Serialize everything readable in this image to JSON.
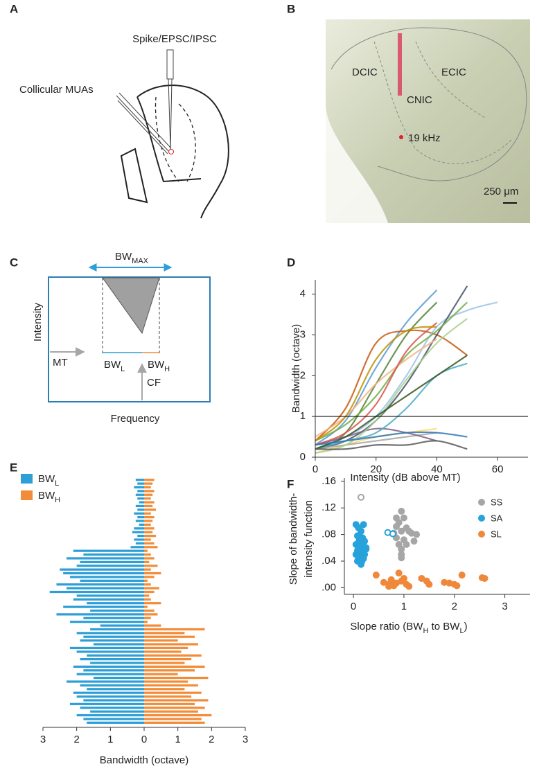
{
  "panel_a": {
    "letter": "A",
    "electrode_label": "Spike/EPSC/IPSC",
    "mua_label": "Collicular MUAs"
  },
  "panel_b": {
    "letter": "B",
    "dcic": "DCIC",
    "ecic": "ECIC",
    "cnic": "CNIC",
    "site": "19 kHz",
    "scale": "250 μm"
  },
  "panel_c": {
    "letter": "C",
    "bw_max": [
      {
        "t": "BW"
      },
      {
        "sub": "MAX"
      }
    ],
    "y_label": "Intensity",
    "x_label": "Frequency",
    "mt": "MT",
    "bw_l": [
      {
        "t": "BW"
      },
      {
        "sub": "L"
      }
    ],
    "bw_h": [
      {
        "t": "BW"
      },
      {
        "sub": "H"
      }
    ],
    "cf": "CF"
  },
  "chart_data": [
    {
      "type": "line",
      "panel": "D",
      "y_label": "Bandwidth (octave)",
      "x_label": "Intensity  (dB above MT)",
      "x": [
        0,
        10,
        20,
        30,
        40,
        50,
        60
      ],
      "xlim": [
        0,
        70
      ],
      "ylim": [
        0,
        4.35
      ],
      "xticks": [
        0,
        20,
        40,
        60
      ],
      "yticks": [
        0,
        1,
        2,
        3,
        4
      ],
      "reference_line": 1,
      "series": [
        {
          "color": "#5b9bd5",
          "values": [
            0.3,
            0.9,
            2.2,
            3.3,
            4.1,
            null,
            null
          ]
        },
        {
          "color": "#548235",
          "values": [
            0.2,
            0.6,
            1.8,
            3.0,
            3.8,
            null,
            null
          ]
        },
        {
          "color": "#c55a11",
          "values": [
            0.4,
            1.2,
            2.8,
            3.1,
            3.0,
            2.5,
            null
          ]
        },
        {
          "color": "#9dc3e6",
          "values": [
            0.3,
            0.5,
            1.0,
            2.0,
            3.2,
            3.6,
            3.8
          ]
        },
        {
          "color": "#44546a",
          "values": [
            0.2,
            0.4,
            0.9,
            1.8,
            3.0,
            4.2,
            null
          ]
        },
        {
          "color": "#ffd966",
          "values": [
            0.1,
            0.3,
            0.5,
            0.6,
            0.7,
            null,
            null
          ]
        },
        {
          "color": "#a5a5a5",
          "values": [
            0.2,
            0.3,
            0.4,
            0.5,
            0.6,
            null,
            null
          ]
        },
        {
          "color": "#7f6084",
          "values": [
            0.3,
            0.5,
            0.7,
            0.6,
            0.4,
            null,
            null
          ]
        },
        {
          "color": "#70ad47",
          "values": [
            0.4,
            0.8,
            1.5,
            2.5,
            3.1,
            3.8,
            null
          ]
        },
        {
          "color": "#f4b183",
          "values": [
            0.5,
            1.0,
            1.8,
            2.4,
            2.9,
            null,
            null
          ]
        },
        {
          "color": "#4bacc6",
          "values": [
            0.2,
            0.4,
            0.6,
            1.2,
            2.0,
            2.3,
            null
          ]
        },
        {
          "color": "#d9544f",
          "values": [
            0.3,
            0.6,
            1.3,
            2.6,
            3.3,
            null,
            null
          ]
        },
        {
          "color": "#a9d18e",
          "values": [
            0.1,
            0.3,
            0.9,
            1.9,
            2.8,
            3.4,
            null
          ]
        },
        {
          "color": "#375623",
          "values": [
            0.2,
            0.5,
            1.0,
            1.5,
            2.0,
            2.5,
            null
          ]
        },
        {
          "color": "#2e75b6",
          "values": [
            0.3,
            0.4,
            0.5,
            0.6,
            0.6,
            0.5,
            null
          ]
        },
        {
          "color": "#595959",
          "values": [
            0.2,
            0.2,
            0.3,
            0.3,
            0.4,
            0.2,
            null
          ]
        },
        {
          "color": "#bf9000",
          "values": [
            0.4,
            1.0,
            2.4,
            3.1,
            3.2,
            null,
            null
          ]
        }
      ]
    },
    {
      "type": "butterfly_bar",
      "panel": "E",
      "x_label": "Bandwidth (octave)",
      "xlim": [
        0,
        3
      ],
      "xticks_left": [
        3,
        2,
        1
      ],
      "xticks": [
        0,
        1,
        2,
        3
      ],
      "series": [
        {
          "name": [
            {
              "t": "BW"
            },
            {
              "sub": "L"
            }
          ],
          "color": "#2e9fd6",
          "values": [
            0.25,
            0.2,
            0.3,
            0.2,
            0.25,
            0.2,
            0.15,
            0.25,
            0.2,
            0.3,
            0.2,
            0.25,
            0.15,
            0.3,
            0.35,
            0.2,
            0.3,
            0.25,
            0.4,
            2.1,
            1.8,
            2.3,
            1.9,
            2.0,
            2.5,
            2.4,
            2.2,
            1.9,
            2.6,
            2.3,
            2.8,
            2.0,
            2.1,
            1.7,
            2.4,
            1.6,
            2.6,
            1.8,
            2.2,
            1.3,
            1.6,
            2.0,
            1.8,
            1.9,
            1.5,
            2.2,
            2.0,
            1.7,
            1.9,
            1.6,
            2.1,
            1.8,
            2.0,
            1.5,
            2.3,
            1.9,
            1.7,
            2.1,
            2.0,
            1.8,
            2.2,
            1.9,
            1.6,
            2.0,
            1.8,
            1.7
          ]
        },
        {
          "name": [
            {
              "t": "BW"
            },
            {
              "sub": "H"
            }
          ],
          "color": "#f28c38",
          "values": [
            0.3,
            0.25,
            0.2,
            0.3,
            0.25,
            0.2,
            0.3,
            0.25,
            0.35,
            0.2,
            0.3,
            0.25,
            0.2,
            0.3,
            0.25,
            0.35,
            0.2,
            0.3,
            0.4,
            0.1,
            0.2,
            0.3,
            0.15,
            0.4,
            0.2,
            0.5,
            0.3,
            0.1,
            0.2,
            0.45,
            0.3,
            0.15,
            0.2,
            0.5,
            0.1,
            0.3,
            0.4,
            0.2,
            0.1,
            0.5,
            1.8,
            1.2,
            1.5,
            1.0,
            1.6,
            1.3,
            1.1,
            1.7,
            1.4,
            1.2,
            1.8,
            1.5,
            1.0,
            1.9,
            1.3,
            1.6,
            1.2,
            1.7,
            1.4,
            1.9,
            1.5,
            1.8,
            1.6,
            2.0,
            1.7,
            1.8
          ]
        }
      ]
    },
    {
      "type": "scatter",
      "panel": "F",
      "y_label": [
        "Slope of bandwidth-",
        "intensity function"
      ],
      "x_label": [
        {
          "t": "Slope ratio (BW"
        },
        {
          "sub": "H"
        },
        {
          "t": " to BW"
        },
        {
          "sub": "L"
        },
        {
          "t": ")"
        }
      ],
      "xlim": [
        -0.18,
        3.5
      ],
      "ylim": [
        -0.01,
        0.165
      ],
      "xticks": [
        0,
        1,
        2,
        3
      ],
      "yticks": [
        {
          "value": 0,
          "label": ".00"
        },
        {
          "value": 0.04,
          "label": ".04"
        },
        {
          "value": 0.08,
          "label": ".08"
        },
        {
          "value": 0.12,
          "label": ".12"
        },
        {
          "value": 0.16,
          "label": ".16"
        }
      ],
      "series": [
        {
          "name": "SS",
          "color": "#a6a6a6",
          "x": [
            0.95,
            0.85,
            1.0,
            0.9,
            0.85,
            1.05,
            0.95,
            0.8,
            1.25,
            1.15,
            1.1,
            0.85,
            1.0,
            1.2,
            0.9,
            1.05,
            0.95,
            0.95,
            0.95
          ],
          "values": [
            0.115,
            0.105,
            0.105,
            0.098,
            0.092,
            0.09,
            0.085,
            0.082,
            0.08,
            0.082,
            0.085,
            0.075,
            0.072,
            0.07,
            0.065,
            0.065,
            0.058,
            0.05,
            0.045
          ],
          "open_x": [
            0.15
          ],
          "open_values": [
            0.136
          ]
        },
        {
          "name": "SA",
          "color": "#27a2db",
          "x": [
            0.05,
            0.1,
            0.15,
            0.2,
            0.08,
            0.12,
            0.18,
            0.22,
            0.1,
            0.05,
            0.15,
            0.2,
            0.1,
            0.25,
            0.08,
            0.12,
            0.18,
            0.05,
            0.15,
            0.22,
            0.1,
            0.2,
            0.12,
            0.08,
            0.17,
            0.25,
            0.1,
            0.15
          ],
          "values": [
            0.095,
            0.09,
            0.085,
            0.095,
            0.078,
            0.072,
            0.075,
            0.07,
            0.068,
            0.065,
            0.066,
            0.062,
            0.06,
            0.058,
            0.056,
            0.055,
            0.052,
            0.05,
            0.048,
            0.05,
            0.045,
            0.044,
            0.042,
            0.04,
            0.04,
            0.06,
            0.078,
            0.035
          ],
          "open_x": [
            0.68,
            0.78
          ],
          "open_values": [
            0.083,
            0.081
          ]
        },
        {
          "name": "SL",
          "color": "#f0883a",
          "x": [
            0.45,
            0.6,
            0.7,
            0.75,
            0.8,
            0.85,
            0.9,
            1.0,
            1.05,
            1.1,
            1.35,
            1.45,
            1.5,
            1.8,
            1.9,
            2.0,
            2.05,
            2.15,
            2.55,
            2.6,
            0.95,
            0.7
          ],
          "values": [
            0.019,
            0.008,
            0.005,
            0.012,
            0.003,
            0.007,
            0.022,
            0.014,
            0.005,
            0.002,
            0.014,
            0.01,
            0.005,
            0.008,
            0.007,
            0.005,
            0.003,
            0.019,
            0.015,
            0.014,
            0.01,
            0.002
          ],
          "open_x": [],
          "open_values": []
        }
      ]
    }
  ]
}
